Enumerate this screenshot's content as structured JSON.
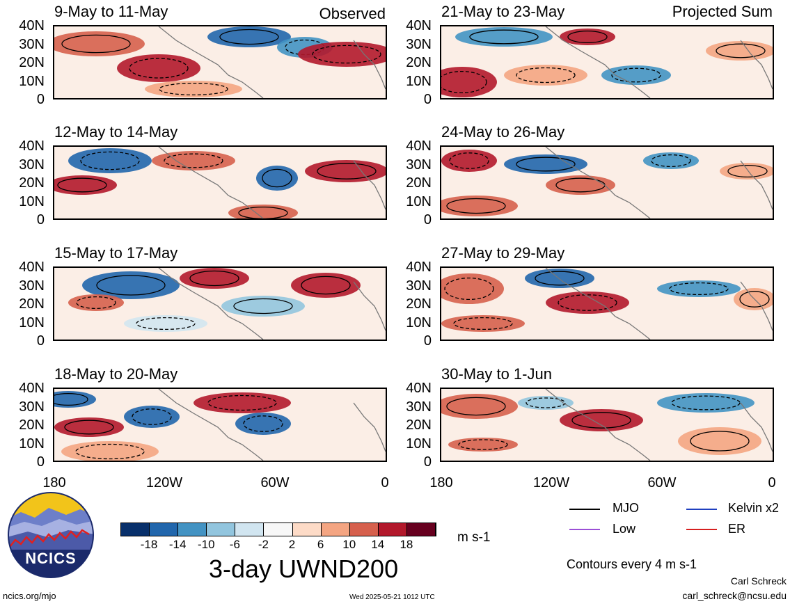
{
  "figure": {
    "main_title": "3-day UWND200",
    "units": "m s-1",
    "contour_note": "Contours every 4 m s-1",
    "author": "Carl Schreck",
    "email": "carl_schreck@ncsu.edu",
    "url": "ncics.org/mjo",
    "timestamp": "Wed 2025-05-21 1012 UTC",
    "logo_text": "NCICS"
  },
  "columns": {
    "left_label": "Observed",
    "right_label": "Projected Sum"
  },
  "lat_labels": [
    "40N",
    "30N",
    "20N",
    "10N",
    "0"
  ],
  "lon_labels": [
    "180",
    "120W",
    "60W",
    "0"
  ],
  "panels_left": [
    {
      "title": "9-May to 11-May"
    },
    {
      "title": "12-May to 14-May"
    },
    {
      "title": "15-May to 17-May"
    },
    {
      "title": "18-May to 20-May"
    }
  ],
  "panels_right": [
    {
      "title": "21-May to 23-May"
    },
    {
      "title": "24-May to 26-May"
    },
    {
      "title": "27-May to 29-May"
    },
    {
      "title": "30-May to 1-Jun"
    }
  ],
  "colorbar": {
    "ticks": [
      "-18",
      "-14",
      "-10",
      "-6",
      "-2",
      "2",
      "6",
      "10",
      "14",
      "18"
    ],
    "colors": [
      "#08306b",
      "#2166ac",
      "#4393c3",
      "#92c5de",
      "#d1e5f0",
      "#f7f7f7",
      "#fddbc7",
      "#f4a582",
      "#d6604d",
      "#b2182b",
      "#67001f"
    ]
  },
  "legend": [
    {
      "label": "MJO",
      "color": "#000000"
    },
    {
      "label": "Kelvin x2",
      "color": "#1f3fbf"
    },
    {
      "label": "Low",
      "color": "#9b4fd6"
    },
    {
      "label": "ER",
      "color": "#d62020"
    }
  ]
}
